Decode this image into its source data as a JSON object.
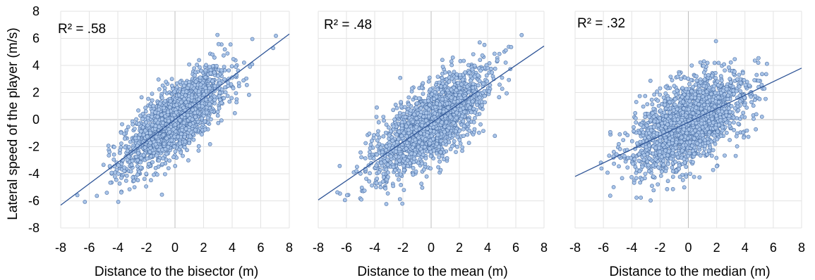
{
  "chart_data": [
    {
      "type": "scatter",
      "ylabel": "Lateral speed of the player (m/s)",
      "xlabel": "Distance to the bisector (m)",
      "annotation": "R² = .58",
      "xlim": [
        -8,
        8
      ],
      "ylim": [
        -8,
        8
      ],
      "xticks": [
        "-8",
        "-6",
        "-4",
        "-2",
        "0",
        "2",
        "4",
        "6",
        "8"
      ],
      "yticks": [
        "8",
        "6",
        "4",
        "2",
        "0",
        "-2",
        "-4",
        "-6",
        "-8"
      ],
      "grid": true,
      "trendline": {
        "slope": 0.79,
        "intercept": 0.0
      },
      "scatter_spread": {
        "x_sd": 2.0,
        "noise_sd": 1.25,
        "n": 1800
      },
      "point_color": "#a9c4e8",
      "point_edge": "#4a6fa5",
      "line_color": "#2f5597"
    },
    {
      "type": "scatter",
      "xlabel": "Distance to the mean (m)",
      "annotation": "R² = .48",
      "xlim": [
        -8,
        8
      ],
      "ylim": [
        -8,
        8
      ],
      "xticks": [
        "-8",
        "-6",
        "-4",
        "-2",
        "0",
        "2",
        "4",
        "6",
        "8"
      ],
      "grid": true,
      "trendline": {
        "slope": 0.71,
        "intercept": -0.25
      },
      "scatter_spread": {
        "x_sd": 2.1,
        "noise_sd": 1.35,
        "n": 2000
      },
      "point_color": "#a9c4e8",
      "point_edge": "#4a6fa5",
      "line_color": "#2f5597"
    },
    {
      "type": "scatter",
      "xlabel": "Distance to the median (m)",
      "annotation": "R² = .32",
      "xlim": [
        -8,
        8
      ],
      "ylim": [
        -8,
        8
      ],
      "xticks": [
        "-8",
        "-6",
        "-4",
        "-2",
        "0",
        "2",
        "4",
        "6",
        "8"
      ],
      "grid": true,
      "trendline": {
        "slope": 0.5,
        "intercept": -0.2
      },
      "scatter_spread": {
        "x_sd": 2.2,
        "noise_sd": 1.45,
        "n": 2000
      },
      "point_color": "#a9c4e8",
      "point_edge": "#4a6fa5",
      "line_color": "#2f5597"
    }
  ]
}
